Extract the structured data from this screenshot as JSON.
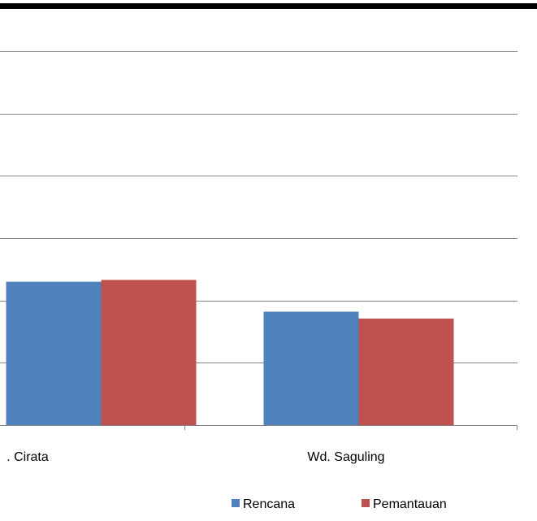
{
  "chart_data": {
    "type": "bar",
    "categories": [
      ". Cirata",
      "Wd. Saguling"
    ],
    "series": [
      {
        "name": "Rencana",
        "values": [
          2.3,
          1.82
        ],
        "color": "#4F81BD"
      },
      {
        "name": "Pemantauan",
        "values": [
          2.33,
          1.71
        ],
        "color": "#C0504D"
      }
    ],
    "ylim": [
      0,
      6
    ],
    "grid": true,
    "legend": {
      "placement": "bottom-right",
      "entries": [
        "Rencana",
        "Pemantauan"
      ]
    }
  }
}
